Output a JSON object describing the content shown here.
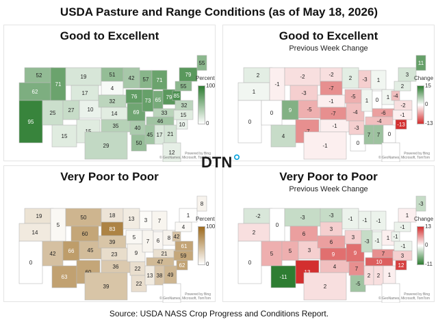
{
  "title": "USDA Pasture and Range Conditions (as of May 18, 2026)",
  "logo_text": "DTN",
  "source": "Source:  USDA NASS Crop Progress and Conditions Report.",
  "attribution": [
    "Powered by Bing",
    "© GeoNames, Microsoft, TomTom"
  ],
  "panels": [
    {
      "id": "ge",
      "title": "Good to Excellent",
      "subtitle": "",
      "legend_title": "Percent",
      "legend_max": "100",
      "legend_min": "0",
      "palette": "green",
      "colors": {
        "low": "#ffffff",
        "high": "#2e7d32"
      },
      "labels": {
        "WA": "52",
        "OR": "62",
        "CA": "95",
        "ID": "71",
        "NV": "25",
        "MT": "19",
        "WY": "17",
        "UT": "27",
        "CO": "10",
        "AZ": "15",
        "NM": "15",
        "ND": "51",
        "SD": "4",
        "NE": "32",
        "KS": "14",
        "OK": "35",
        "TX": "29",
        "MN": "42",
        "IA": "76",
        "MO": "69",
        "AR": "40",
        "LA": "50",
        "WI": "57",
        "IL": "73",
        "MI": "71",
        "IN": "65",
        "OH": "79",
        "KY": "33",
        "TN": "46",
        "MS": "45",
        "AL": "17",
        "GA": "21",
        "FL": "12",
        "SC": "10",
        "NC": "15",
        "VA": "32",
        "WV": "85",
        "PA": "55",
        "NY": "79",
        "ME": "55"
      }
    },
    {
      "id": "gec",
      "title": "Good to Excellent",
      "subtitle": "Previous Week Change",
      "legend_title": "Change",
      "legend_max": "15",
      "legend_mid": "0",
      "legend_min": "-13",
      "palette": "diverging_pos_green",
      "colors": {
        "negative": "#d32f2f",
        "zero": "#ffffff",
        "positive": "#2e7d32"
      },
      "labels": {
        "WA": "2",
        "OR": "1",
        "CA": "0",
        "ID": "-1",
        "NV": "0",
        "MT": "-2",
        "WY": "-3",
        "UT": "9",
        "CO": "-5",
        "AZ": "4",
        "NM": "-7",
        "ND": "-2",
        "SD": "-7",
        "NE": "-1",
        "KS": "-7",
        "OK": "-1",
        "TX": "-1",
        "MN": "2",
        "IA": "-5",
        "MO": "-4",
        "AR": "-3",
        "LA": "0",
        "WI": "-3",
        "IL": "1",
        "MI": "1",
        "IN": "0",
        "OH": "1",
        "KY": "-6",
        "TN": "-4",
        "MS": "7",
        "AL": "7",
        "GA": "0",
        "SC": "-13",
        "NC": "-1",
        "VA": "-2",
        "WV": "-4",
        "PA": "2",
        "NY": "3",
        "ME": "11"
      }
    },
    {
      "id": "vp",
      "title": "Very Poor to Poor",
      "subtitle": "",
      "legend_title": "Percent",
      "legend_max": "100",
      "legend_min": "0",
      "palette": "brown",
      "colors": {
        "low": "#ffffff",
        "high": "#9c6a1e"
      },
      "labels": {
        "WA": "19",
        "OR": "14",
        "CA": "0",
        "ID": "5",
        "NV": "42",
        "MT": "50",
        "WY": "60",
        "UT": "66",
        "CO": "45",
        "AZ": "63",
        "NM": "60",
        "ND": "18",
        "SD": "83",
        "NE": "39",
        "KS": "23",
        "OK": "36",
        "TX": "39",
        "MN": "13",
        "IA": "5",
        "MO": "9",
        "AR": "22",
        "LA": "22",
        "WI": "3",
        "IL": "7",
        "MI": "7",
        "IN": "6",
        "OH": "8",
        "KY": "21",
        "TN": "47",
        "MS": "13",
        "AL": "38",
        "GA": "49",
        "SC": "62",
        "NC": "59",
        "VA": "61",
        "WV": "42",
        "PA": "4",
        "NY": "1",
        "ME": "8"
      }
    },
    {
      "id": "vpc",
      "title": "Very Poor to Poor",
      "subtitle": "Previous Week Change",
      "legend_title": "Change",
      "legend_max": "13",
      "legend_mid": "0",
      "legend_min": "-11",
      "palette": "diverging_pos_red",
      "colors": {
        "negative": "#2e7d32",
        "zero": "#ffffff",
        "positive": "#d32f2f"
      },
      "labels": {
        "WA": "-2",
        "OR": "2",
        "CA": "0",
        "ID": "0",
        "NV": "5",
        "MT": "-3",
        "WY": "6",
        "UT": "5",
        "CO": "3",
        "AZ": "-11",
        "NM": "13",
        "ND": "-3",
        "SD": "3",
        "NE": "6",
        "KS": "9",
        "OK": "4",
        "TX": "2",
        "MN": "-1",
        "IA": "3",
        "MO": "9",
        "AR": "7",
        "LA": "-5",
        "WI": "-1",
        "IL": "-3",
        "MI": "-1",
        "IN": "-1",
        "OH": "1",
        "KY": "7",
        "TN": "10",
        "MS": "2",
        "AL": "2",
        "GA": "1",
        "SC": "12",
        "NC": "3",
        "VA": "-1",
        "WV": "-1",
        "PA": "-1",
        "NY": "1",
        "ME": "-3"
      }
    }
  ]
}
